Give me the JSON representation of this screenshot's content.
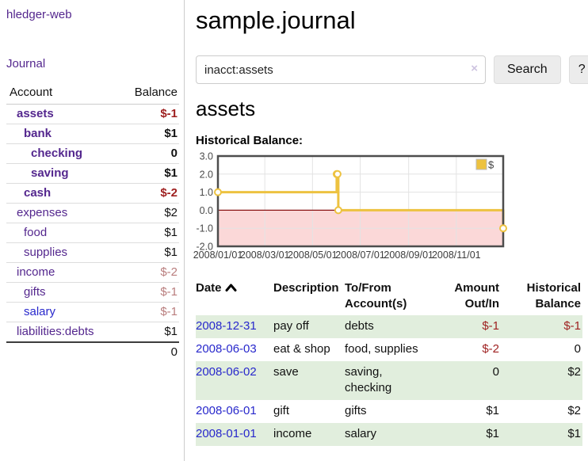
{
  "app": {
    "title": "hledger-web"
  },
  "sidebar": {
    "journal_link": "Journal",
    "accounts_table": {
      "headers": {
        "account": "Account",
        "balance": "Balance"
      },
      "rows": [
        {
          "name": "assets",
          "indent": 1,
          "bold": true,
          "balance": "$-1",
          "balance_style": "neg-strong"
        },
        {
          "name": "bank",
          "indent": 2,
          "bold": true,
          "balance": "$1",
          "balance_style": "pos"
        },
        {
          "name": "checking",
          "indent": 3,
          "bold": true,
          "balance": "0",
          "balance_style": "pos"
        },
        {
          "name": "saving",
          "indent": 3,
          "bold": true,
          "balance": "$1",
          "balance_style": "pos"
        },
        {
          "name": "cash",
          "indent": 2,
          "bold": true,
          "balance": "$-2",
          "balance_style": "neg-strong"
        },
        {
          "name": "expenses",
          "indent": 1,
          "bold": false,
          "balance": "$2",
          "balance_style": "pos"
        },
        {
          "name": "food",
          "indent": 2,
          "bold": false,
          "balance": "$1",
          "balance_style": "pos"
        },
        {
          "name": "supplies",
          "indent": 2,
          "bold": false,
          "balance": "$1",
          "balance_style": "pos"
        },
        {
          "name": "income",
          "indent": 1,
          "bold": false,
          "balance": "$-2",
          "balance_style": "neg-soft"
        },
        {
          "name": "gifts",
          "indent": 2,
          "bold": false,
          "balance": "$-1",
          "balance_style": "neg-soft"
        },
        {
          "name": "salary",
          "indent": 2,
          "bold": false,
          "link_style": "blue",
          "balance": "$-1",
          "balance_style": "neg-soft"
        },
        {
          "name": "liabilities:debts",
          "indent": 1,
          "bold": false,
          "balance": "$1",
          "balance_style": "pos"
        }
      ],
      "total": "0"
    }
  },
  "main": {
    "title": "sample.journal",
    "search": {
      "value": "inacct:assets",
      "clear_icon": "×",
      "button_label": "Search",
      "help_label": "?"
    },
    "account_heading": "assets",
    "chart_label": "Historical Balance:"
  },
  "chart_data": {
    "type": "line",
    "title": "Historical Balance",
    "step": true,
    "series": [
      {
        "name": "$",
        "points": [
          [
            "2008-01-01",
            1
          ],
          [
            "2008-06-01",
            2
          ],
          [
            "2008-06-02",
            2
          ],
          [
            "2008-06-03",
            0
          ],
          [
            "2008-12-31",
            -1
          ]
        ]
      }
    ],
    "x_ticks": [
      "2008/01/01",
      "2008/03/01",
      "2008/05/01",
      "2008/07/01",
      "2008/09/01",
      "2008/11/01"
    ],
    "y_ticks": [
      3.0,
      2.0,
      1.0,
      0.0,
      -1.0,
      -2.0
    ],
    "xlim": [
      "2008-01-01",
      "2008-12-31"
    ],
    "ylim": [
      -2,
      3
    ],
    "grid": true,
    "legend": {
      "label": "$",
      "position": "top-right"
    },
    "series_color": "#edc240",
    "negative_region_color": "#fbd8d8",
    "zero_line_color": "#8b1515"
  },
  "register_table": {
    "headers": {
      "date": "Date",
      "description": "Description",
      "account_line1": "To/From",
      "account_line2": "Account(s)",
      "amount_line1": "Amount",
      "amount_line2": "Out/In",
      "balance_line1": "Historical",
      "balance_line2": "Balance"
    },
    "rows": [
      {
        "date": "2008-12-31",
        "description": "pay off",
        "accounts": "debts",
        "amount": "$-1",
        "amount_negative": true,
        "balance": "$-1",
        "balance_negative": true,
        "shaded": true
      },
      {
        "date": "2008-06-03",
        "description": "eat & shop",
        "accounts": "food, supplies",
        "amount": "$-2",
        "amount_negative": true,
        "balance": "0",
        "balance_negative": false,
        "shaded": false
      },
      {
        "date": "2008-06-02",
        "description": "save",
        "accounts": "saving, checking",
        "amount": "0",
        "amount_negative": false,
        "balance": "$2",
        "balance_negative": false,
        "shaded": true
      },
      {
        "date": "2008-06-01",
        "description": "gift",
        "accounts": "gifts",
        "amount": "$1",
        "amount_negative": false,
        "balance": "$2",
        "balance_negative": false,
        "shaded": false
      },
      {
        "date": "2008-01-01",
        "description": "income",
        "accounts": "salary",
        "amount": "$1",
        "amount_negative": false,
        "balance": "$1",
        "balance_negative": false,
        "shaded": true
      }
    ]
  }
}
